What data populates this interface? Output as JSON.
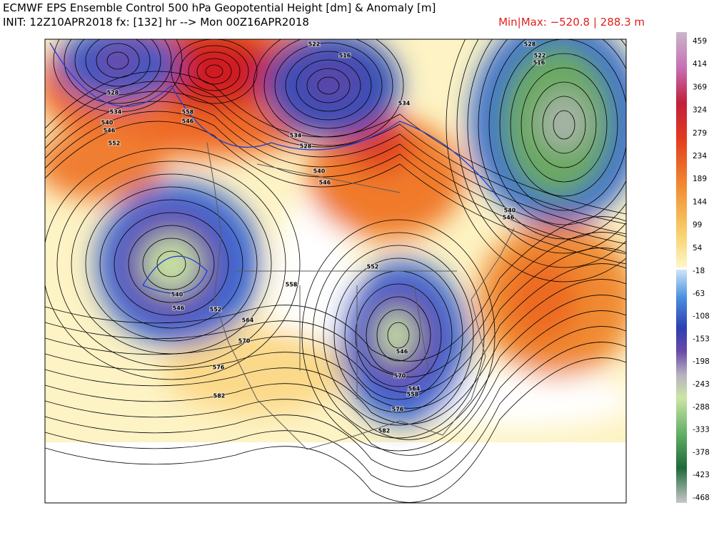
{
  "header": {
    "title": "ECMWF EPS Ensemble Control 500 hPa Geopotential Height [dm] & Anomaly [m]",
    "subtitle": "INIT: 12Z10APR2018 fx: [132] hr --> Mon 00Z16APR2018",
    "minmax": "Min|Max: −520.8 | 288.3 m"
  },
  "colorbar": {
    "ticks": [
      459,
      414,
      369,
      324,
      279,
      234,
      189,
      144,
      99,
      54,
      -18,
      -63,
      -108,
      -153,
      -198,
      -243,
      -288,
      -333,
      -378,
      -423,
      -468
    ]
  },
  "contour_labels": [
    "522",
    "516",
    "528",
    "534",
    "540",
    "546",
    "552",
    "558",
    "528",
    "534",
    "540",
    "546",
    "552",
    "558",
    "564",
    "570",
    "576",
    "582",
    "540",
    "546",
    "552",
    "558",
    "564",
    "570",
    "576",
    "546",
    "540",
    "546",
    "528",
    "522",
    "516",
    "534",
    "546",
    "582"
  ]
}
